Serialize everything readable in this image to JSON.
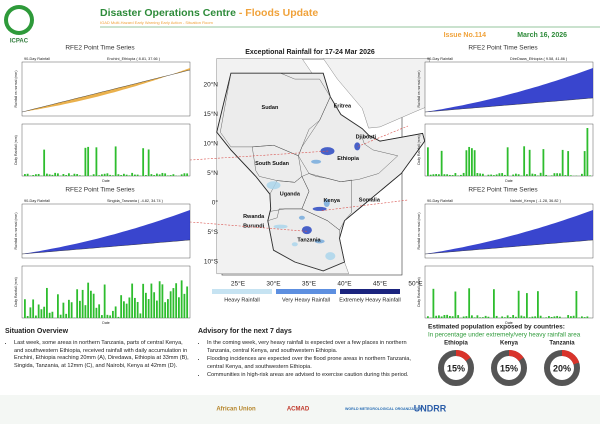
{
  "header": {
    "logo": "ICPAC",
    "title": "Disaster Operations Centre",
    "title_highlight": "- Floods Update",
    "subtitle": "IGAD Multi-Hazard Early Warning Early Action - Situation Room",
    "issue": "Issue No.114",
    "date": "March 16, 2026"
  },
  "map": {
    "title": "Exceptional Rainfall for 17-24 Mar 2026",
    "countries": [
      "Sudan",
      "Eritrea",
      "Djibouti",
      "Ethiopia",
      "South Sudan",
      "Uganda",
      "Kenya",
      "Somalia",
      "Rwanda",
      "Burundi",
      "Tanzania"
    ],
    "lat_labels": [
      "20°N",
      "15°N",
      "10°N",
      "5°N",
      "0°",
      "5°S",
      "10°S"
    ],
    "lon_labels": [
      "25°E",
      "30°E",
      "35°E",
      "40°E",
      "45°E",
      "50°E"
    ],
    "legend": [
      "Heavy Rainfall",
      "Very Heavy Rainfall",
      "Extremely Heavy Rainfall"
    ]
  },
  "panels": [
    {
      "letter": "A",
      "title": "RFE2 Point Time Series",
      "subtitle": "90-Day Rainfall",
      "location": "Enchini_Ethiopia ( 8.81, 37.66 )",
      "upper_axis": "Rainfall vs normal (mm)",
      "lower_axis": "Daily Rainfall (mm)",
      "x_axis": "Date"
    },
    {
      "letter": "B",
      "title": "RFE2 Point Time Series",
      "subtitle": "90-Day Rainfall",
      "location": "DireDawa_Ethiopia ( 9.58, 41.86 )",
      "upper_axis": "Rainfall vs normal (mm)",
      "lower_axis": "Daily Rainfall (mm)",
      "x_axis": "Date"
    },
    {
      "letter": "C",
      "title": "RFE2 Point Time Series",
      "subtitle": "90-Day Rainfall",
      "location": "Singida_Tanzania ( -4.82, 34.74 )",
      "upper_axis": "Rainfall vs normal (mm)",
      "lower_axis": "Daily Rainfall (mm)",
      "x_axis": "Date"
    },
    {
      "letter": "D",
      "title": "RFE2 Point Time Series",
      "subtitle": "90-Day Rainfall",
      "location": "Nairobi_Kenya ( -1.28, 36.82 )",
      "upper_axis": "Rainfall vs normal (mm)",
      "lower_axis": "Daily Rainfall (mm)",
      "x_axis": "Date"
    }
  ],
  "situation": {
    "heading": "Situation Overview",
    "bullets": [
      "Last week, some areas in northern Tanzania, parts of central Kenya, and southwestern Ethiopia, received rainfall with daily accumulation in Enchini, Ethiopia reaching 20mm (A), Diredawa, Ethiopia at 33mm (B), Singida, Tanzania, at 12mm (C), and Nairobi, Kenya at 42mm (D)."
    ]
  },
  "advisory": {
    "heading": "Advisory for the next 7 days",
    "bullets": [
      "In the coming week, very heavy rainfall is expected over a few places in northern Tanzania, central Kenya, and southwestern Ethiopia.",
      "Flooding incidences are expected over the flood prone areas in northern Tanzania, central Kenya, and southwestern Ethiopia.",
      "Communities in high-risk areas are advised to exercise caution during this period."
    ]
  },
  "population": {
    "heading": "Estimated population exposed by countries:",
    "subheading": "In percentage under extremely/very heavy rainfall area",
    "countries": [
      "Ethiopia",
      "Kenya",
      "Tanzania"
    ],
    "values": [
      15,
      15,
      20
    ],
    "value_labels": [
      "15%",
      "15%",
      "20%"
    ]
  },
  "footer": {
    "logos": [
      "African Union",
      "ACMAD",
      "WORLD METEOROLOGICAL ORGANIZATION",
      "UNDRR"
    ]
  }
}
